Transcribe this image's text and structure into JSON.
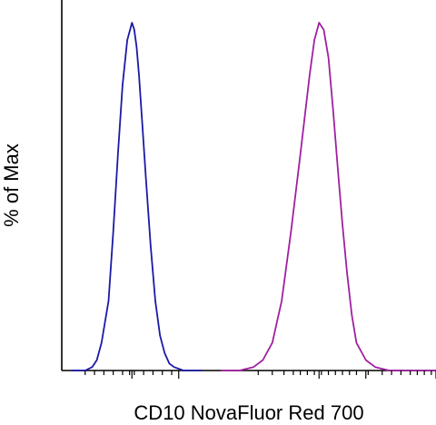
{
  "chart_data": {
    "type": "line",
    "title": "",
    "xlabel": "CD10 NovaFluor Red 700",
    "ylabel": "% of Max",
    "x_scale": "biexponential (log-like)",
    "ylim": [
      0,
      100
    ],
    "grid": false,
    "legend": "none",
    "series": [
      {
        "color": "#1a1aa6",
        "x": [
          0.2,
          0.5,
          0.65,
          0.75,
          0.85,
          1.0,
          1.1,
          1.2,
          1.3,
          1.4,
          1.5,
          1.55,
          1.6,
          1.65,
          1.7,
          1.8,
          1.9,
          2.0,
          2.1,
          2.2,
          2.3,
          2.4,
          2.6,
          2.8,
          3.0
        ],
        "y": [
          0,
          0,
          1,
          3,
          8,
          20,
          40,
          62,
          82,
          95,
          100,
          98,
          93,
          85,
          75,
          55,
          36,
          20,
          10,
          5,
          2,
          1,
          0,
          0,
          0
        ]
      },
      {
        "color": "#a020a0",
        "x": [
          3.4,
          3.8,
          4.1,
          4.3,
          4.5,
          4.7,
          4.9,
          5.1,
          5.3,
          5.4,
          5.5,
          5.6,
          5.7,
          5.8,
          5.9,
          6.0,
          6.1,
          6.2,
          6.3,
          6.5,
          6.7,
          7.0,
          7.5,
          8.0
        ],
        "y": [
          0,
          0,
          1,
          3,
          8,
          20,
          40,
          62,
          85,
          95,
          100,
          98,
          90,
          75,
          58,
          42,
          28,
          16,
          8,
          3,
          1,
          0,
          0,
          0
        ]
      }
    ],
    "x_tick_positions": [
      0.5,
      0.7,
      0.9,
      1.1,
      1.3,
      1.45,
      1.5,
      1.55,
      1.75,
      1.95,
      2.15,
      2.35,
      2.5,
      4.2,
      4.5,
      4.75,
      4.95,
      5.1,
      5.25,
      5.4,
      5.55,
      5.7,
      5.85,
      6.0,
      6.15,
      6.3,
      6.55,
      6.85,
      7.05,
      7.25,
      7.45,
      7.6,
      7.75,
      7.9
    ],
    "x_major_ticks": [
      1.5,
      2.5,
      5.5,
      6.5,
      8.0
    ],
    "x_range": [
      0,
      8.0
    ]
  }
}
